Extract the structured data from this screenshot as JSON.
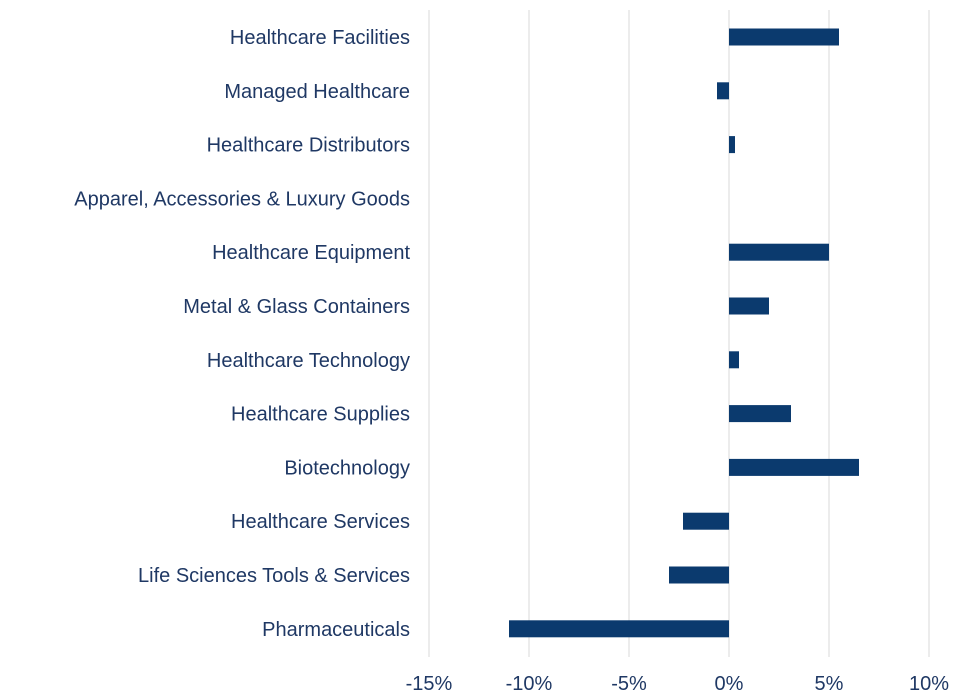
{
  "chart_data": {
    "type": "bar",
    "orientation": "horizontal",
    "categories": [
      "Healthcare Facilities",
      "Managed Healthcare",
      "Healthcare Distributors",
      "Apparel, Accessories & Luxury Goods",
      "Healthcare Equipment",
      "Metal & Glass Containers",
      "Healthcare Technology",
      "Healthcare Supplies",
      "Biotechnology",
      "Healthcare Services",
      "Life Sciences Tools & Services",
      "Pharmaceuticals"
    ],
    "values": [
      5.5,
      -0.6,
      0.3,
      0.0,
      5.0,
      2.0,
      0.5,
      3.1,
      6.5,
      -2.3,
      -3.0,
      -11.0
    ],
    "xlim": [
      -15,
      10
    ],
    "ticks": [
      -15,
      -10,
      -5,
      0,
      5,
      10
    ],
    "tick_labels": [
      "-15%",
      "-10%",
      "-5%",
      "0%",
      "5%",
      "10%"
    ],
    "title": "",
    "xlabel": "",
    "ylabel": "",
    "grid": "vertical",
    "legend": "none",
    "bar_color": "#0b3a6e",
    "label_color": "#1f3864",
    "grid_color": "#d9d9d9"
  }
}
